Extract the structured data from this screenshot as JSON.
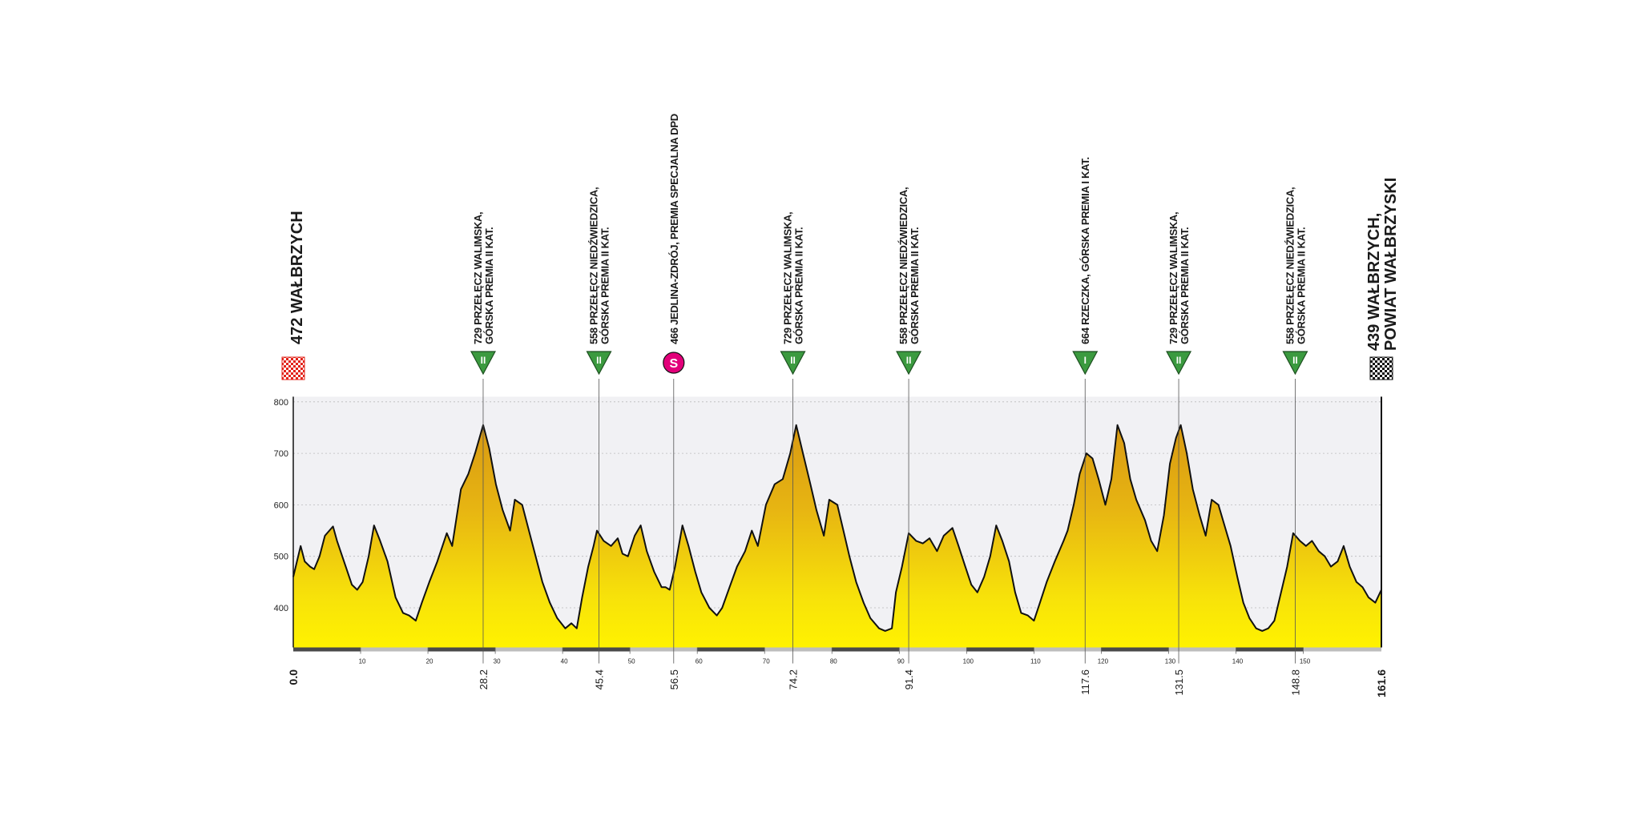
{
  "chart_data": {
    "type": "area",
    "x": [
      0,
      1.1,
      1.7,
      2.5,
      3.1,
      3.9,
      4.7,
      5.9,
      6.5,
      7.8,
      8.7,
      9.5,
      10.3,
      11.2,
      12.0,
      12.9,
      14.0,
      15.2,
      16.3,
      17.2,
      18.2,
      19.1,
      20.2,
      21.4,
      22.8,
      23.6,
      24.9,
      26.0,
      27.0,
      28.2,
      29.1,
      30.1,
      31.1,
      32.2,
      32.9,
      34.0,
      35.0,
      36.0,
      37.0,
      38.1,
      39.2,
      40.4,
      41.3,
      42.1,
      42.9,
      43.8,
      44.6,
      45.1,
      46.1,
      47.2,
      48.2,
      48.9,
      49.7,
      50.7,
      51.6,
      52.5,
      53.6,
      54.7,
      55.3,
      55.9,
      56.7,
      57.8,
      58.7,
      59.7,
      60.6,
      61.8,
      62.9,
      63.7,
      64.8,
      65.9,
      67.1,
      68.1,
      69.0,
      70.2,
      71.5,
      72.7,
      73.8,
      74.7,
      75.7,
      76.8,
      77.7,
      78.8,
      79.6,
      80.8,
      81.7,
      82.6,
      83.6,
      84.7,
      85.7,
      87.0,
      87.9,
      88.9,
      89.5,
      90.4,
      91.4,
      92.5,
      93.5,
      94.5,
      95.6,
      96.6,
      97.9,
      98.8,
      99.8,
      100.7,
      101.6,
      102.6,
      103.5,
      104.4,
      105.3,
      106.3,
      107.2,
      108.1,
      109.1,
      110.0,
      110.9,
      111.9,
      113.1,
      114.4,
      115.0,
      115.9,
      116.8,
      117.8,
      118.7,
      119.6,
      120.6,
      121.5,
      122.4,
      123.4,
      124.3,
      125.2,
      126.5,
      127.4,
      128.3,
      129.3,
      130.2,
      131.1,
      131.8,
      132.7,
      133.6,
      134.6,
      135.5,
      136.4,
      137.4,
      138.3,
      139.2,
      140.2,
      141.1,
      142.0,
      143.0,
      143.9,
      144.8,
      145.7,
      146.7,
      147.6,
      148.5,
      149.5,
      150.4,
      151.3,
      152.3,
      153.2,
      154.1,
      155.1,
      156.0,
      156.9,
      157.9,
      158.8,
      159.7,
      160.7,
      161.6
    ],
    "values": [
      460,
      520,
      490,
      480,
      475,
      500,
      540,
      558,
      530,
      480,
      445,
      435,
      450,
      500,
      560,
      530,
      490,
      420,
      390,
      385,
      375,
      410,
      450,
      490,
      545,
      520,
      630,
      660,
      700,
      755,
      710,
      640,
      590,
      550,
      610,
      600,
      550,
      500,
      450,
      410,
      380,
      360,
      370,
      360,
      420,
      480,
      520,
      550,
      530,
      520,
      535,
      505,
      500,
      540,
      560,
      510,
      470,
      440,
      440,
      435,
      480,
      560,
      520,
      470,
      430,
      400,
      385,
      400,
      440,
      480,
      510,
      550,
      520,
      600,
      640,
      650,
      700,
      755,
      700,
      640,
      590,
      540,
      610,
      600,
      550,
      500,
      450,
      410,
      380,
      360,
      355,
      360,
      430,
      480,
      545,
      530,
      525,
      535,
      510,
      540,
      555,
      520,
      480,
      445,
      430,
      460,
      500,
      560,
      530,
      490,
      430,
      390,
      385,
      375,
      410,
      450,
      490,
      530,
      550,
      600,
      660,
      700,
      690,
      650,
      600,
      650,
      755,
      720,
      650,
      610,
      570,
      530,
      510,
      580,
      680,
      730,
      755,
      700,
      630,
      580,
      540,
      610,
      600,
      560,
      520,
      460,
      410,
      380,
      360,
      355,
      360,
      375,
      430,
      480,
      545,
      530,
      520,
      530,
      510,
      500,
      480,
      490,
      520,
      480,
      450,
      440,
      420,
      410,
      435
    ],
    "xlim": [
      0,
      161.6
    ],
    "ylim": [
      323,
      810
    ],
    "yticks": [
      400,
      500,
      600,
      700,
      800
    ],
    "xticks": [
      10,
      20,
      30,
      40,
      50,
      60,
      70,
      80,
      90,
      100,
      110,
      120,
      130,
      140,
      150
    ],
    "grid": true,
    "start": {
      "km": {
        "value": 0,
        "label": "0.0"
      },
      "lines": [
        "472 WAŁBRZYCH"
      ]
    },
    "finish": {
      "km": {
        "value": 161.6,
        "label": "161.6"
      },
      "lines": [
        "439 WAŁBRZYCH,",
        "POWIAT WAŁBRZYSKI"
      ]
    },
    "points": [
      {
        "km": {
          "value": 28.2,
          "label": "28.2"
        },
        "badge": "II",
        "lines": [
          "729 PRZEŁĘCZ WALIMSKA,",
          "GÓRSKA PREMIA II KAT."
        ]
      },
      {
        "km": {
          "value": 45.4,
          "label": "45.4"
        },
        "badge": "II",
        "lines": [
          "558 PRZEŁĘCZ NIEDŹWIEDZICA,",
          "GÓRSKA PREMIA II KAT."
        ]
      },
      {
        "km": {
          "value": 56.5,
          "label": "56.5"
        },
        "badge": "S",
        "lines": [
          "466 JEDLINA-ZDRÓJ, PREMIA SPECJALNA DPD"
        ]
      },
      {
        "km": {
          "value": 74.2,
          "label": "74.2"
        },
        "badge": "II",
        "lines": [
          "729 PRZEŁĘCZ WALIMSKA,",
          "GÓRSKA PREMIA II KAT."
        ]
      },
      {
        "km": {
          "value": 91.4,
          "label": "91.4"
        },
        "badge": "II",
        "lines": [
          "558 PRZEŁĘCZ NIEDŹWIEDZICA,",
          "GÓRSKA PREMIA II KAT."
        ]
      },
      {
        "km": {
          "value": 117.6,
          "label": "117.6"
        },
        "badge": "I",
        "lines": [
          "664 RZECZKA, GÓRSKA PREMIA I KAT."
        ]
      },
      {
        "km": {
          "value": 131.5,
          "label": "131.5"
        },
        "badge": "II",
        "lines": [
          "729 PRZEŁĘCZ WALIMSKA,",
          "GÓRSKA PREMIA II KAT."
        ]
      },
      {
        "km": {
          "value": 148.8,
          "label": "148.8"
        },
        "badge": "II",
        "lines": [
          "558 PRZEŁĘCZ NIEDŹWIEDZICA,",
          "GÓRSKA PREMIA II KAT."
        ]
      }
    ]
  }
}
